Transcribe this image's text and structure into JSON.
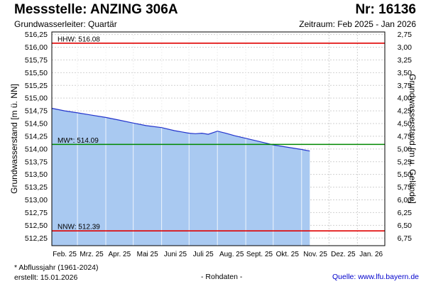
{
  "header": {
    "title": "Messstelle: ANZING 306A",
    "number": "Nr: 16136",
    "aquifer": "Grundwasserleiter: Quartär",
    "period": "Zeitraum: Feb 2025 - Jan 2026"
  },
  "footer": {
    "note": "* Abflussjahr (1961-2024)",
    "created": "erstellt:  15.01.2026",
    "raw": "- Rohdaten -",
    "source": "Quelle:  www.lfu.bayern.de"
  },
  "colors": {
    "fill": "#a9c9f1",
    "line": "#2233cc",
    "limit": "#e00000",
    "mean": "#008800",
    "grid": "#d0d0d0"
  },
  "chart_data": {
    "type": "area",
    "ylabel_left": "Grundwasserstand [m ü. NN]",
    "ylabel_right": "Grundwasserstand [m u. Gelände]",
    "ylim": [
      512.1,
      516.3
    ],
    "yticks_left": [
      "516,25",
      "516,00",
      "515,75",
      "515,50",
      "515,25",
      "515,00",
      "514,75",
      "514,50",
      "514,25",
      "514,00",
      "513,75",
      "513,50",
      "513,25",
      "513,00",
      "512,75",
      "512,50",
      "512,25"
    ],
    "yticks_right": [
      "2,75",
      "3,00",
      "3,25",
      "3,50",
      "3,75",
      "4,00",
      "4,25",
      "4,50",
      "4,75",
      "5,00",
      "5,25",
      "5,50",
      "5,75",
      "6,00",
      "6,25",
      "6,50",
      "6,75"
    ],
    "xticks": [
      "Feb. 25",
      "Mrz. 25",
      "Apr. 25",
      "Mai 25",
      "Juni 25",
      "Juli 25",
      "Aug. 25",
      "Sept. 25",
      "Okt. 25",
      "Nov. 25",
      "Dez. 25",
      "Jan. 26"
    ],
    "grid": true,
    "reference_lines": [
      {
        "label": "HHW: 516.08",
        "value": 516.08,
        "color": "#e00000"
      },
      {
        "label": "MW*: 514.09",
        "value": 514.09,
        "color": "#008800"
      },
      {
        "label": "NNW: 512.39",
        "value": 512.39,
        "color": "#e00000"
      }
    ],
    "series": [
      {
        "x": [
          "2025-02-01",
          "2025-02-15",
          "2025-03-01",
          "2025-03-15",
          "2025-04-01",
          "2025-04-15",
          "2025-05-01",
          "2025-05-15",
          "2025-06-01",
          "2025-06-15",
          "2025-07-01",
          "2025-07-08",
          "2025-07-15",
          "2025-07-22",
          "2025-08-01",
          "2025-08-10",
          "2025-08-20",
          "2025-09-01",
          "2025-09-15",
          "2025-10-01",
          "2025-10-15",
          "2025-11-01",
          "2025-11-10"
        ],
        "values": [
          514.8,
          514.75,
          514.71,
          514.67,
          514.62,
          514.57,
          514.51,
          514.46,
          514.42,
          514.36,
          514.31,
          514.3,
          514.31,
          514.29,
          514.35,
          514.31,
          514.26,
          514.21,
          514.15,
          514.08,
          514.04,
          513.99,
          513.96
        ]
      }
    ]
  }
}
